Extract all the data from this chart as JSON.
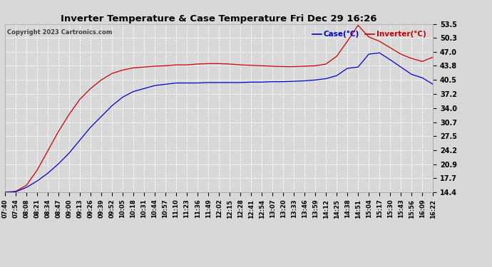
{
  "title": "Inverter Temperature & Case Temperature Fri Dec 29 16:26",
  "copyright": "Copyright 2023 Cartronics.com",
  "legend_case": "Case(°C)",
  "legend_inverter": "Inverter(°C)",
  "y_ticks": [
    14.4,
    17.7,
    20.9,
    24.2,
    27.5,
    30.7,
    34.0,
    37.2,
    40.5,
    43.8,
    47.0,
    50.3,
    53.5
  ],
  "ylim": [
    14.4,
    53.5
  ],
  "x_labels": [
    "07:40",
    "07:54",
    "08:08",
    "08:21",
    "08:34",
    "08:47",
    "09:00",
    "09:13",
    "09:26",
    "09:39",
    "09:52",
    "10:05",
    "10:18",
    "10:31",
    "10:44",
    "10:57",
    "11:10",
    "11:23",
    "11:36",
    "11:49",
    "12:02",
    "12:15",
    "12:28",
    "12:41",
    "12:54",
    "13:07",
    "13:20",
    "13:33",
    "13:46",
    "13:59",
    "14:12",
    "14:25",
    "14:38",
    "14:51",
    "15:04",
    "15:17",
    "15:30",
    "15:43",
    "15:56",
    "16:09",
    "16:22"
  ],
  "bg_color": "#d8d8d8",
  "grid_color": "#ffffff",
  "case_color": "#0000cc",
  "inverter_color": "#cc0000",
  "title_color": "#000000",
  "copyright_color": "#404040",
  "case_data": [
    14.4,
    14.5,
    15.5,
    17.0,
    18.8,
    21.0,
    23.5,
    26.5,
    29.5,
    32.0,
    34.5,
    36.5,
    37.8,
    38.5,
    39.2,
    39.5,
    39.8,
    39.8,
    39.8,
    39.9,
    39.9,
    39.9,
    39.9,
    40.0,
    40.0,
    40.1,
    40.1,
    40.2,
    40.3,
    40.5,
    40.8,
    41.5,
    43.2,
    43.5,
    46.5,
    46.8,
    45.2,
    43.5,
    41.8,
    41.0,
    39.5
  ],
  "inverter_data": [
    14.4,
    14.6,
    16.0,
    19.5,
    24.0,
    28.5,
    32.5,
    36.0,
    38.5,
    40.5,
    42.0,
    42.8,
    43.3,
    43.5,
    43.7,
    43.8,
    44.0,
    44.0,
    44.2,
    44.3,
    44.3,
    44.2,
    44.0,
    43.9,
    43.8,
    43.7,
    43.6,
    43.6,
    43.7,
    43.8,
    44.2,
    46.0,
    49.5,
    53.2,
    50.5,
    49.5,
    48.0,
    46.5,
    45.5,
    44.8,
    45.8
  ]
}
